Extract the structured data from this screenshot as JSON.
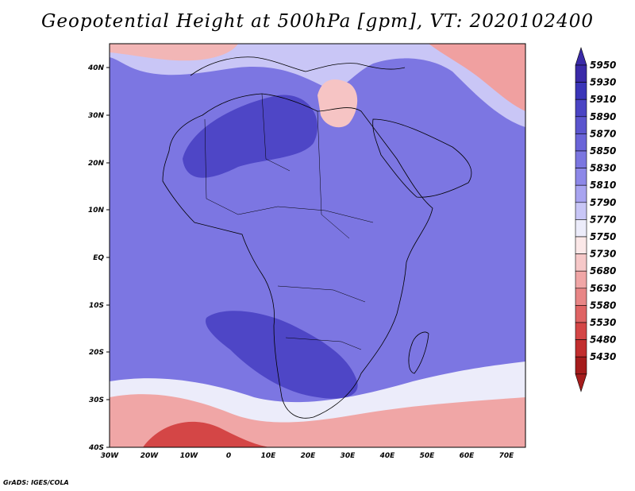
{
  "title": "Geopotential Height at 500hPa [gpm], VT: 2020102400",
  "map": {
    "lat_labels": [
      "40N",
      "30N",
      "20N",
      "10N",
      "EQ",
      "10S",
      "20S",
      "30S",
      "40S"
    ],
    "lon_labels": [
      "30W",
      "20W",
      "10W",
      "0",
      "10E",
      "20E",
      "30E",
      "40E",
      "50E",
      "60E",
      "70E"
    ]
  },
  "colorbar": {
    "levels": [
      "5950",
      "5930",
      "5910",
      "5890",
      "5870",
      "5850",
      "5830",
      "5810",
      "5790",
      "5770",
      "5750",
      "5730",
      "5680",
      "5630",
      "5580",
      "5530",
      "5480",
      "5430"
    ],
    "colors": [
      "#3a2aa8",
      "#3a35b8",
      "#4a44c4",
      "#5b55ce",
      "#6a64d8",
      "#7b76e0",
      "#8d88e8",
      "#a8a4f0",
      "#c8c6f6",
      "#ececfa",
      "#fbe8e8",
      "#f6c8c8",
      "#f0a6a6",
      "#e88686",
      "#df6464",
      "#d44646",
      "#c22e2e",
      "#a51c1c"
    ]
  },
  "credit": "GrADS: IGES/COLA"
}
